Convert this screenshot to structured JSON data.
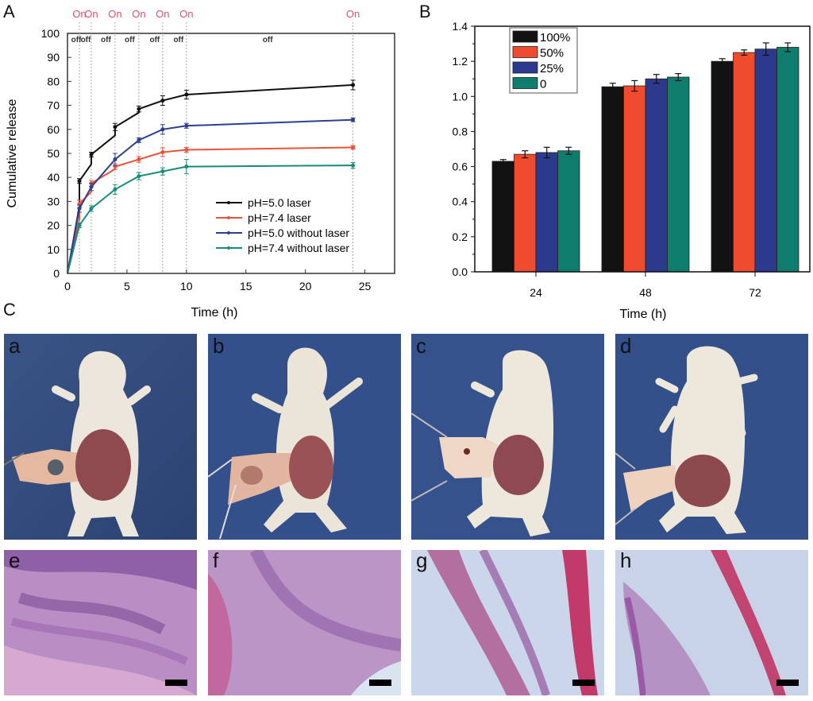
{
  "figure": {
    "panel_labels": {
      "A": "A",
      "B": "B",
      "C": "C"
    }
  },
  "chart_data": [
    {
      "id": "A",
      "type": "line",
      "title": "",
      "xlabel": "Time (h)",
      "ylabel": "Cumulative release",
      "xlim": [
        0,
        27.5
      ],
      "ylim": [
        0,
        100
      ],
      "xticks": [
        0,
        5,
        10,
        15,
        20,
        25
      ],
      "yticks": [
        0,
        10,
        20,
        30,
        40,
        50,
        60,
        70,
        80,
        90,
        100
      ],
      "grid": false,
      "legend_position": "bottom-right",
      "laser_on_times": [
        1,
        2,
        4,
        6,
        8,
        10,
        24
      ],
      "on_label": "On",
      "off_label": "off",
      "off_label_times": [
        0.4,
        1.2,
        2.9,
        4.9,
        7.0,
        9.0,
        16.5
      ],
      "series": [
        {
          "name": "pH=5.0 laser",
          "color": "#111111",
          "points": [
            [
              0,
              0
            ],
            [
              1,
              28
            ],
            [
              1,
              38.5
            ],
            [
              2,
              45.5
            ],
            [
              2,
              49.5
            ],
            [
              4,
              57.5
            ],
            [
              4,
              61
            ],
            [
              6,
              67
            ],
            [
              6,
              68.5
            ],
            [
              8,
              72
            ],
            [
              10,
              74.5
            ],
            [
              24,
              78.5
            ]
          ],
          "markers": [
            [
              1,
              38.5
            ],
            [
              2,
              49.5
            ],
            [
              4,
              61
            ],
            [
              6,
              68.5
            ],
            [
              8,
              72
            ],
            [
              10,
              74.5
            ],
            [
              24,
              78.5
            ]
          ],
          "errors": [
            1.0,
            1.0,
            1.5,
            1.2,
            2.0,
            1.8,
            2.0
          ]
        },
        {
          "name": "pH=7.4 laser",
          "color": "#e8533a",
          "points": [
            [
              0,
              0
            ],
            [
              1,
              22.5
            ],
            [
              1,
              29
            ],
            [
              2,
              34
            ],
            [
              2,
              37.5
            ],
            [
              4,
              43.5
            ],
            [
              4,
              44.5
            ],
            [
              6,
              47.5
            ],
            [
              8,
              50.5
            ],
            [
              10,
              51.5
            ],
            [
              24,
              52.5
            ]
          ],
          "markers": [
            [
              1,
              29
            ],
            [
              2,
              37.5
            ],
            [
              4,
              44.5
            ],
            [
              6,
              47.5
            ],
            [
              8,
              50.5
            ],
            [
              10,
              51.5
            ],
            [
              24,
              52.5
            ]
          ],
          "errors": [
            1.5,
            1.2,
            1.2,
            1.2,
            1.8,
            1.0,
            0.8
          ]
        },
        {
          "name": "pH=5.0 without laser",
          "color": "#2d3f8f",
          "points": [
            [
              0,
              0
            ],
            [
              1,
              27
            ],
            [
              2,
              36
            ],
            [
              4,
              47.5
            ],
            [
              6,
              55.5
            ],
            [
              8,
              60
            ],
            [
              10,
              61.5
            ],
            [
              24,
              64
            ]
          ],
          "markers": [
            [
              1,
              27
            ],
            [
              2,
              36
            ],
            [
              4,
              47.5
            ],
            [
              6,
              55.5
            ],
            [
              8,
              60
            ],
            [
              10,
              61.5
            ],
            [
              24,
              64
            ]
          ],
          "errors": [
            1.5,
            1.5,
            2.5,
            1.0,
            2.0,
            1.0,
            0.8
          ]
        },
        {
          "name": "pH=7.4 without laser",
          "color": "#1a8a7a",
          "points": [
            [
              0,
              0
            ],
            [
              1,
              20
            ],
            [
              2,
              27
            ],
            [
              4,
              35
            ],
            [
              6,
              40.5
            ],
            [
              8,
              42.5
            ],
            [
              10,
              44.5
            ],
            [
              24,
              45
            ]
          ],
          "markers": [
            [
              1,
              20
            ],
            [
              2,
              27
            ],
            [
              4,
              35
            ],
            [
              6,
              40.5
            ],
            [
              8,
              42.5
            ],
            [
              10,
              44.5
            ],
            [
              24,
              45
            ]
          ],
          "errors": [
            1.0,
            1.2,
            2.0,
            1.5,
            1.5,
            3.0,
            1.2
          ]
        }
      ]
    },
    {
      "id": "B",
      "type": "bar",
      "title": "",
      "xlabel": "Time (h)",
      "ylabel": "",
      "ylim": [
        0,
        1.4
      ],
      "yticks": [
        0.0,
        0.2,
        0.4,
        0.6,
        0.8,
        1.0,
        1.2,
        1.4
      ],
      "ytick_labels": [
        "0.0",
        "0.2",
        "0.4",
        "0.6",
        "0.8",
        "1.0",
        "1.2",
        "1.4"
      ],
      "categories": [
        "24",
        "48",
        "72"
      ],
      "grid": false,
      "legend_position": "top-left",
      "series": [
        {
          "name": "100%",
          "color": "#121212",
          "values": [
            0.63,
            1.055,
            1.2
          ],
          "errors": [
            0.01,
            0.02,
            0.015
          ]
        },
        {
          "name": "50%",
          "color": "#ef4b2f",
          "values": [
            0.67,
            1.06,
            1.25
          ],
          "errors": [
            0.02,
            0.03,
            0.015
          ]
        },
        {
          "name": "25%",
          "color": "#2b3a8c",
          "values": [
            0.68,
            1.1,
            1.27
          ],
          "errors": [
            0.03,
            0.025,
            0.035
          ]
        },
        {
          "name": "0",
          "color": "#0f7d6d",
          "values": [
            0.69,
            1.11,
            1.28
          ],
          "errors": [
            0.02,
            0.02,
            0.025
          ]
        }
      ]
    }
  ],
  "photos": [
    {
      "label": "a",
      "description": "mouse with subcutaneous implant, device with electrode"
    },
    {
      "label": "b",
      "description": "mouse with subcutaneous implant"
    },
    {
      "label": "c",
      "description": "mouse with subcutaneous implant, forceps"
    },
    {
      "label": "d",
      "description": "mouse with subcutaneous implant"
    }
  ],
  "histology": [
    {
      "label": "e",
      "description": "H&E stained tissue section"
    },
    {
      "label": "f",
      "description": "H&E stained tissue section"
    },
    {
      "label": "g",
      "description": "H&E stained tissue section"
    },
    {
      "label": "h",
      "description": "H&E stained tissue section"
    }
  ]
}
